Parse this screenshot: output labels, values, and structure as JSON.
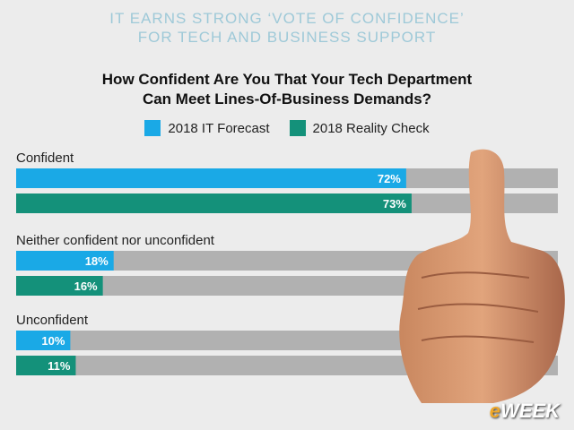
{
  "header": {
    "line1": "IT EARNS STRONG ‘VOTE OF CONFIDENCE’",
    "line2": "FOR TECH AND BUSINESS SUPPORT"
  },
  "logo": {
    "prefix": "e",
    "rest": "WEEK"
  },
  "colors": {
    "forecast": "#1aa9e6",
    "reality": "#14917a",
    "track": "#b1b1b1"
  },
  "chart_data": {
    "type": "bar",
    "orientation": "horizontal",
    "title_line1": "How Confident Are You That Your Tech Department",
    "title_line2": "Can Meet Lines-Of-Business Demands?",
    "categories": [
      "Confident",
      "Neither confident nor unconfident",
      "Unconfident"
    ],
    "series": [
      {
        "name": "2018 IT Forecast",
        "values": [
          72,
          18,
          10
        ],
        "labels": [
          "72%",
          "18%",
          "10%"
        ]
      },
      {
        "name": "2018 Reality Check",
        "values": [
          73,
          16,
          11
        ],
        "labels": [
          "73%",
          "16%",
          "11%"
        ]
      }
    ],
    "xlim": [
      0,
      100
    ],
    "legend_position": "top-center"
  }
}
